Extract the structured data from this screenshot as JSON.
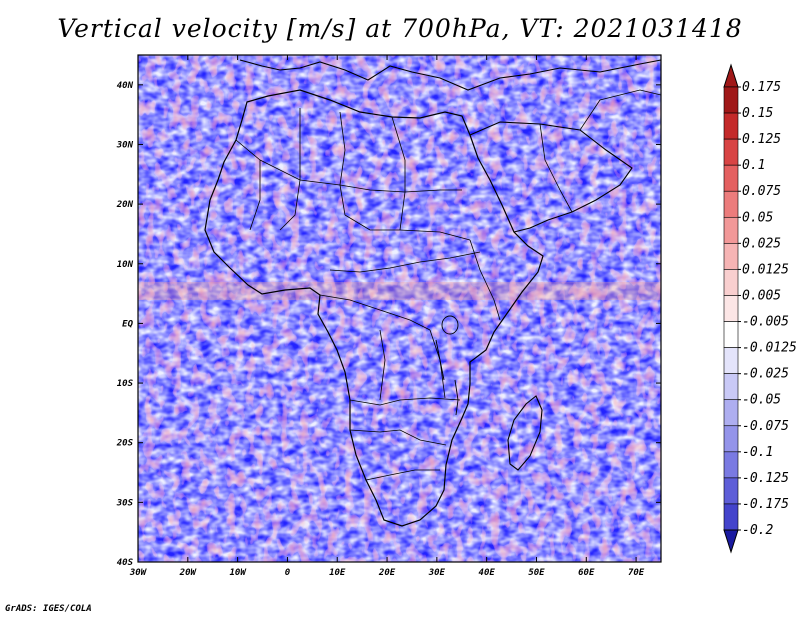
{
  "title": "Vertical velocity [m/s] at 700hPa, VT: 2021031418",
  "credit": "GrADS: IGES/COLA",
  "map": {
    "lon_range": [
      -30,
      75
    ],
    "lat_range": [
      -40,
      45
    ],
    "lon_ticks": [
      {
        "value": -30,
        "label": "30W"
      },
      {
        "value": -20,
        "label": "20W"
      },
      {
        "value": -10,
        "label": "10W"
      },
      {
        "value": 0,
        "label": "0"
      },
      {
        "value": 10,
        "label": "10E"
      },
      {
        "value": 20,
        "label": "20E"
      },
      {
        "value": 30,
        "label": "30E"
      },
      {
        "value": 40,
        "label": "40E"
      },
      {
        "value": 50,
        "label": "50E"
      },
      {
        "value": 60,
        "label": "60E"
      },
      {
        "value": 70,
        "label": "70E"
      }
    ],
    "lat_ticks": [
      {
        "value": 40,
        "label": "40N"
      },
      {
        "value": 30,
        "label": "30N"
      },
      {
        "value": 20,
        "label": "20N"
      },
      {
        "value": 10,
        "label": "10N"
      },
      {
        "value": 0,
        "label": "EQ"
      },
      {
        "value": -10,
        "label": "10S"
      },
      {
        "value": -20,
        "label": "20S"
      },
      {
        "value": -30,
        "label": "30S"
      },
      {
        "value": -40,
        "label": "40S"
      }
    ]
  },
  "colorbar": {
    "levels": [
      {
        "label": "0.175",
        "color": "#a01818"
      },
      {
        "label": "0.15",
        "color": "#c42a2a"
      },
      {
        "label": "0.125",
        "color": "#d84444"
      },
      {
        "label": "0.1",
        "color": "#e46060"
      },
      {
        "label": "0.075",
        "color": "#ec7c7c"
      },
      {
        "label": "0.05",
        "color": "#f29898"
      },
      {
        "label": "0.025",
        "color": "#f6b4b4"
      },
      {
        "label": "0.0125",
        "color": "#f9cfcf"
      },
      {
        "label": "0.005",
        "color": "#fce6e6"
      },
      {
        "label": "-0.005",
        "color": "#ffffff"
      },
      {
        "label": "-0.0125",
        "color": "#e4e4fb"
      },
      {
        "label": "-0.025",
        "color": "#c9c9f6"
      },
      {
        "label": "-0.05",
        "color": "#aeaef0"
      },
      {
        "label": "-0.075",
        "color": "#9494ea"
      },
      {
        "label": "-0.1",
        "color": "#7a7ae2"
      },
      {
        "label": "-0.125",
        "color": "#5e5ed8"
      },
      {
        "label": "-0.175",
        "color": "#4444cc"
      },
      {
        "label": "-0.2",
        "color": "#2a2abb"
      }
    ],
    "top_color": "#a01818",
    "bottom_color": "#1a1aa0"
  }
}
